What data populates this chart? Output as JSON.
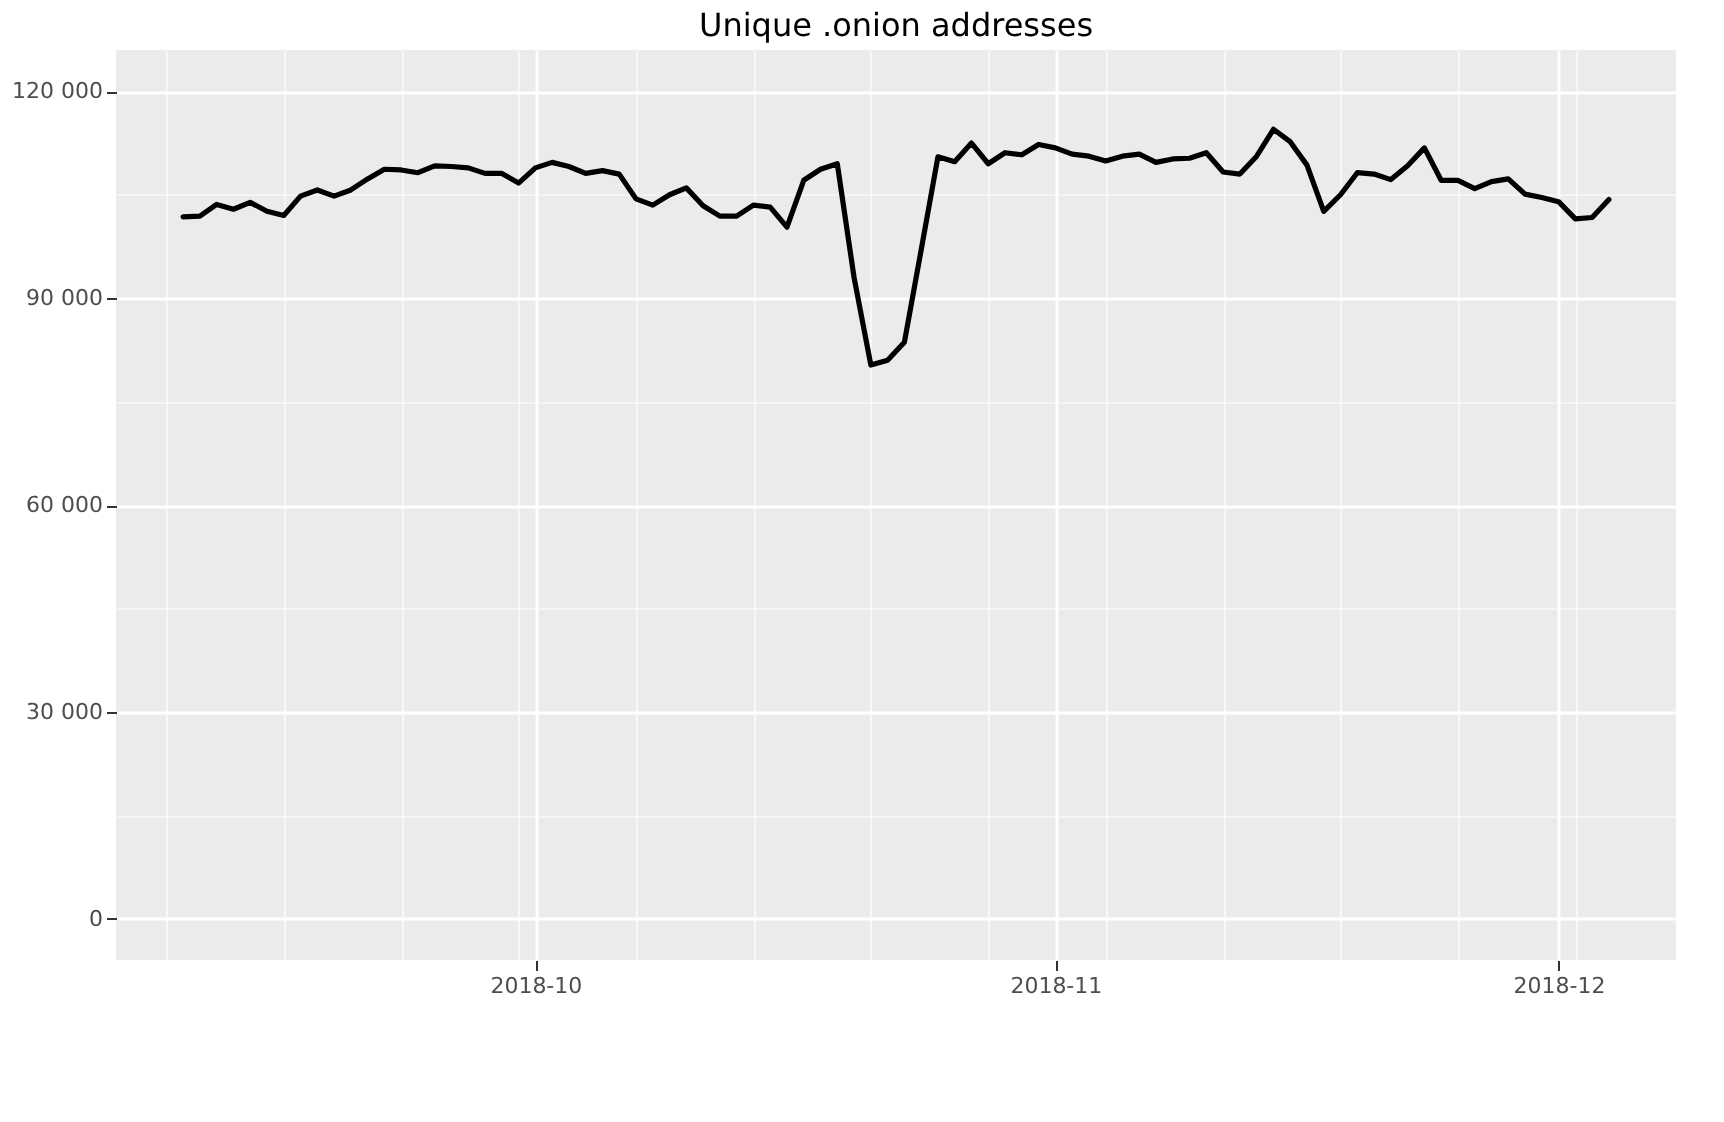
{
  "chart_data": {
    "type": "line",
    "title": "Unique .onion addresses",
    "x": [
      "2018-09-10",
      "2018-09-11",
      "2018-09-12",
      "2018-09-13",
      "2018-09-14",
      "2018-09-15",
      "2018-09-16",
      "2018-09-17",
      "2018-09-18",
      "2018-09-19",
      "2018-09-20",
      "2018-09-21",
      "2018-09-22",
      "2018-09-23",
      "2018-09-24",
      "2018-09-25",
      "2018-09-26",
      "2018-09-27",
      "2018-09-28",
      "2018-09-29",
      "2018-09-30",
      "2018-10-01",
      "2018-10-02",
      "2018-10-03",
      "2018-10-04",
      "2018-10-05",
      "2018-10-06",
      "2018-10-07",
      "2018-10-08",
      "2018-10-09",
      "2018-10-10",
      "2018-10-11",
      "2018-10-12",
      "2018-10-13",
      "2018-10-14",
      "2018-10-15",
      "2018-10-16",
      "2018-10-17",
      "2018-10-18",
      "2018-10-19",
      "2018-10-20",
      "2018-10-21",
      "2018-10-22",
      "2018-10-23",
      "2018-10-24",
      "2018-10-25",
      "2018-10-26",
      "2018-10-27",
      "2018-10-28",
      "2018-10-29",
      "2018-10-30",
      "2018-10-31",
      "2018-11-01",
      "2018-11-02",
      "2018-11-03",
      "2018-11-04",
      "2018-11-05",
      "2018-11-06",
      "2018-11-07",
      "2018-11-08",
      "2018-11-09",
      "2018-11-10",
      "2018-11-11",
      "2018-11-12",
      "2018-11-13",
      "2018-11-14",
      "2018-11-15",
      "2018-11-16",
      "2018-11-17",
      "2018-11-18",
      "2018-11-19",
      "2018-11-20",
      "2018-11-21",
      "2018-11-22",
      "2018-11-23",
      "2018-11-24",
      "2018-11-25",
      "2018-11-26",
      "2018-11-27",
      "2018-11-28",
      "2018-11-29",
      "2018-11-30",
      "2018-12-01",
      "2018-12-02",
      "2018-12-03",
      "2018-12-04"
    ],
    "series": [
      {
        "color": "#000000",
        "values": [
          101800,
          101900,
          103600,
          102900,
          103900,
          102600,
          102000,
          104800,
          105700,
          104800,
          105700,
          107300,
          108700,
          108600,
          108200,
          109200,
          109100,
          108900,
          108100,
          108100,
          106700,
          108900,
          109700,
          109100,
          108100,
          108500,
          108000,
          104400,
          103500,
          105000,
          106000,
          103400,
          101900,
          101900,
          103500,
          103200,
          100300,
          107100,
          108700,
          109500,
          93000,
          80300,
          81000,
          83600,
          97000,
          110500,
          109800,
          112500,
          109500,
          111100,
          110800,
          112300,
          111800,
          110900,
          110600,
          109900,
          110600,
          110900,
          109700,
          110200,
          110300,
          111100,
          108300,
          108000,
          110600,
          114500,
          112700,
          109300,
          102600,
          105000,
          108200,
          108000,
          107200,
          109200,
          111800,
          107100,
          107100,
          105900,
          106900,
          107300,
          105100,
          104600,
          104000,
          101500,
          101700,
          104300
        ]
      }
    ],
    "xlim": [
      "2018-09-06",
      "2018-12-08"
    ],
    "xticks": [
      {
        "value": "2018-09-09",
        "label": null
      },
      {
        "value": "2018-09-16",
        "label": null
      },
      {
        "value": "2018-09-23",
        "label": null
      },
      {
        "value": "2018-09-30",
        "label": null
      },
      {
        "value": "2018-10-01",
        "label": "2018-10"
      },
      {
        "value": "2018-10-07",
        "label": null
      },
      {
        "value": "2018-10-14",
        "label": null
      },
      {
        "value": "2018-10-21",
        "label": null
      },
      {
        "value": "2018-10-28",
        "label": null
      },
      {
        "value": "2018-11-01",
        "label": "2018-11"
      },
      {
        "value": "2018-11-04",
        "label": null
      },
      {
        "value": "2018-11-11",
        "label": null
      },
      {
        "value": "2018-11-18",
        "label": null
      },
      {
        "value": "2018-11-25",
        "label": null
      },
      {
        "value": "2018-12-01",
        "label": "2018-12"
      },
      {
        "value": "2018-12-02",
        "label": null
      }
    ],
    "ylim": [
      -6000,
      126000
    ],
    "yticks": [
      {
        "value": 0,
        "label": "0"
      },
      {
        "value": 15000,
        "label": null
      },
      {
        "value": 30000,
        "label": "30 000"
      },
      {
        "value": 45000,
        "label": null
      },
      {
        "value": 60000,
        "label": "60 000"
      },
      {
        "value": 75000,
        "label": null
      },
      {
        "value": 90000,
        "label": "90 000"
      },
      {
        "value": 105000,
        "label": null
      },
      {
        "value": 120000,
        "label": "120 000"
      }
    ],
    "grid": true,
    "line_style": "solid",
    "marker": "none",
    "legend": false
  }
}
